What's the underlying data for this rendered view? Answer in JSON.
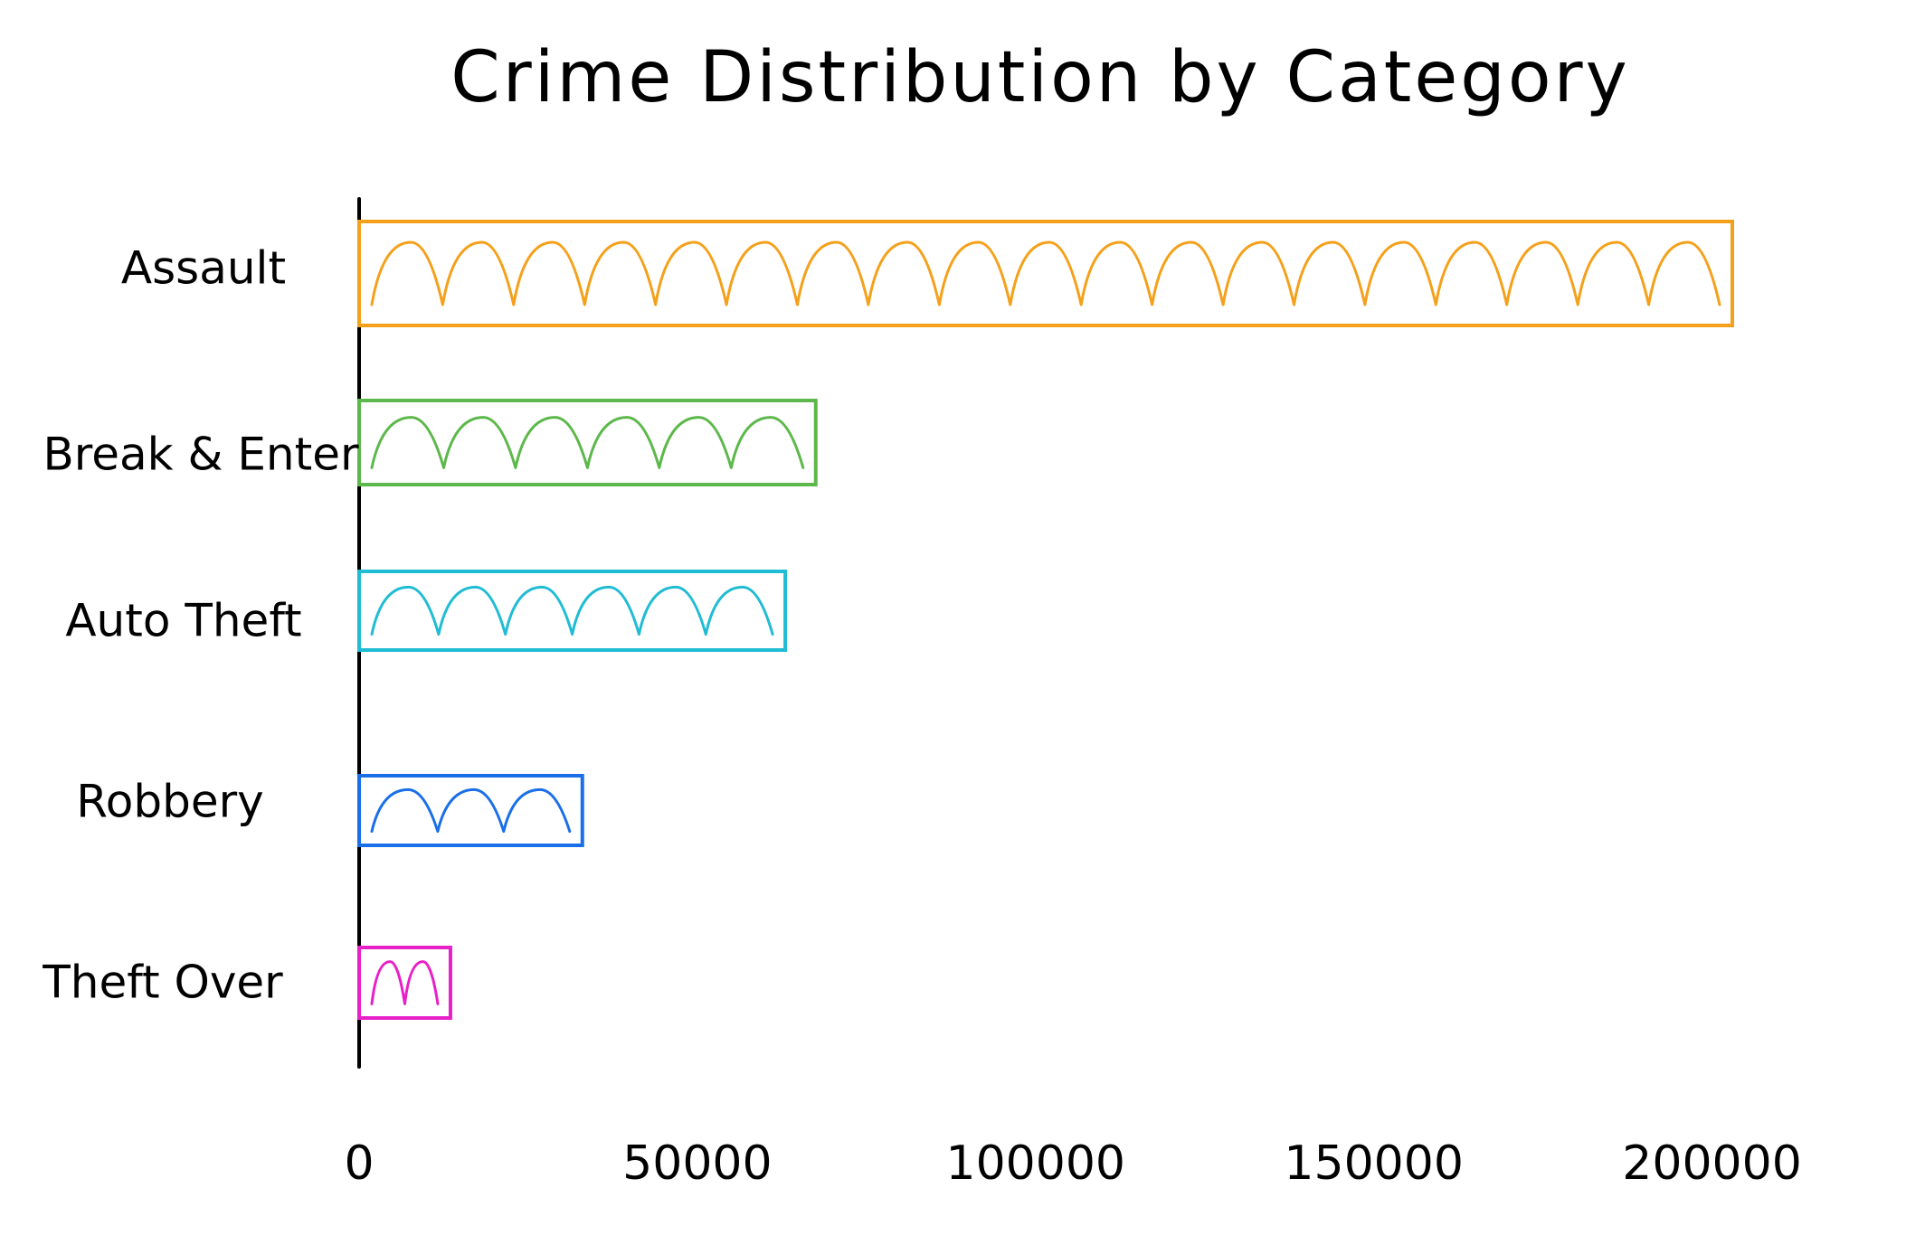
{
  "chart_data": {
    "type": "bar",
    "orientation": "horizontal",
    "title": "Crime Distribution by Category",
    "xlabel": "",
    "ylabel": "",
    "categories": [
      "Assault",
      "Break & Enter",
      "Auto Theft",
      "Robbery",
      "Theft Over"
    ],
    "values": [
      203000,
      67500,
      63000,
      33000,
      13500
    ],
    "colors": [
      "#F5A01A",
      "#5CB84A",
      "#20BCD4",
      "#1A6FE8",
      "#E820C8"
    ],
    "xlim": [
      0,
      203000
    ],
    "xticks": [
      0,
      50000,
      100000,
      150000,
      200000
    ],
    "xtick_labels": [
      "0",
      "50000",
      "100000",
      "150000",
      "200000"
    ],
    "grid": false,
    "legend": "none",
    "style": "hand-drawn"
  }
}
